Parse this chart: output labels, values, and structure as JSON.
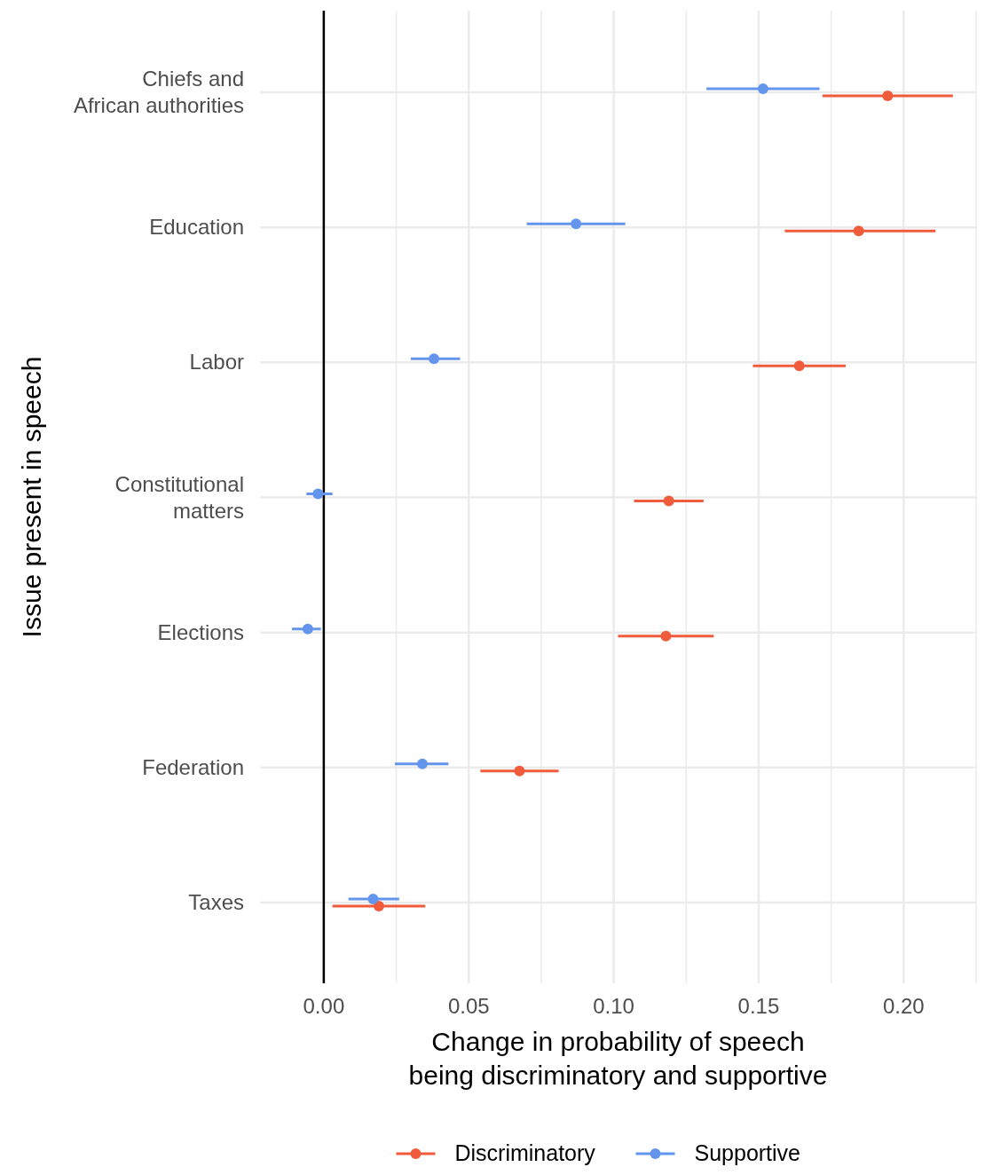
{
  "chart_data": {
    "type": "scatter",
    "orientation": "horizontal",
    "xlabel": "Change in probability of speech\nbeing discriminatory and supportive",
    "ylabel": "Issue present in speech",
    "categories": [
      "Chiefs and\nAfrican authorities",
      "Education",
      "Labor",
      "Constitutional\nmatters",
      "Elections",
      "Federation",
      "Taxes"
    ],
    "series": [
      {
        "name": "Discriminatory",
        "color": "#ef5b3b",
        "values": [
          0.1945,
          0.1845,
          0.164,
          0.119,
          0.118,
          0.0675,
          0.019
        ],
        "errors": [
          [
            0.172,
            0.217
          ],
          [
            0.159,
            0.211
          ],
          [
            0.148,
            0.18
          ],
          [
            0.107,
            0.131
          ],
          [
            0.1015,
            0.1345
          ],
          [
            0.054,
            0.081
          ],
          [
            0.003,
            0.035
          ]
        ]
      },
      {
        "name": "Supportive",
        "color": "#6495ed",
        "values": [
          0.1515,
          0.087,
          0.038,
          -0.002,
          -0.0055,
          0.034,
          0.017
        ],
        "errors": [
          [
            0.132,
            0.171
          ],
          [
            0.07,
            0.104
          ],
          [
            0.03,
            0.047
          ],
          [
            -0.006,
            0.003
          ],
          [
            -0.011,
            -0.001
          ],
          [
            0.0245,
            0.043
          ],
          [
            0.0085,
            0.026
          ]
        ]
      }
    ],
    "xlim": [
      -0.022,
      0.225
    ],
    "xticks": [
      {
        "value": 0,
        "label": "0.00"
      },
      {
        "value": 0.025,
        "label": null
      },
      {
        "value": 0.05,
        "label": "0.05"
      },
      {
        "value": 0.075,
        "label": null
      },
      {
        "value": 0.1,
        "label": "0.10"
      },
      {
        "value": 0.125,
        "label": null
      },
      {
        "value": 0.15,
        "label": "0.15"
      },
      {
        "value": 0.175,
        "label": null
      },
      {
        "value": 0.2,
        "label": "0.20"
      },
      {
        "value": 0.225,
        "label": null
      }
    ],
    "ref_lines": [
      {
        "axis": "x",
        "value": 0,
        "color": "#000000"
      }
    ],
    "grid": true,
    "legend": "bottom",
    "marker": "circle"
  }
}
